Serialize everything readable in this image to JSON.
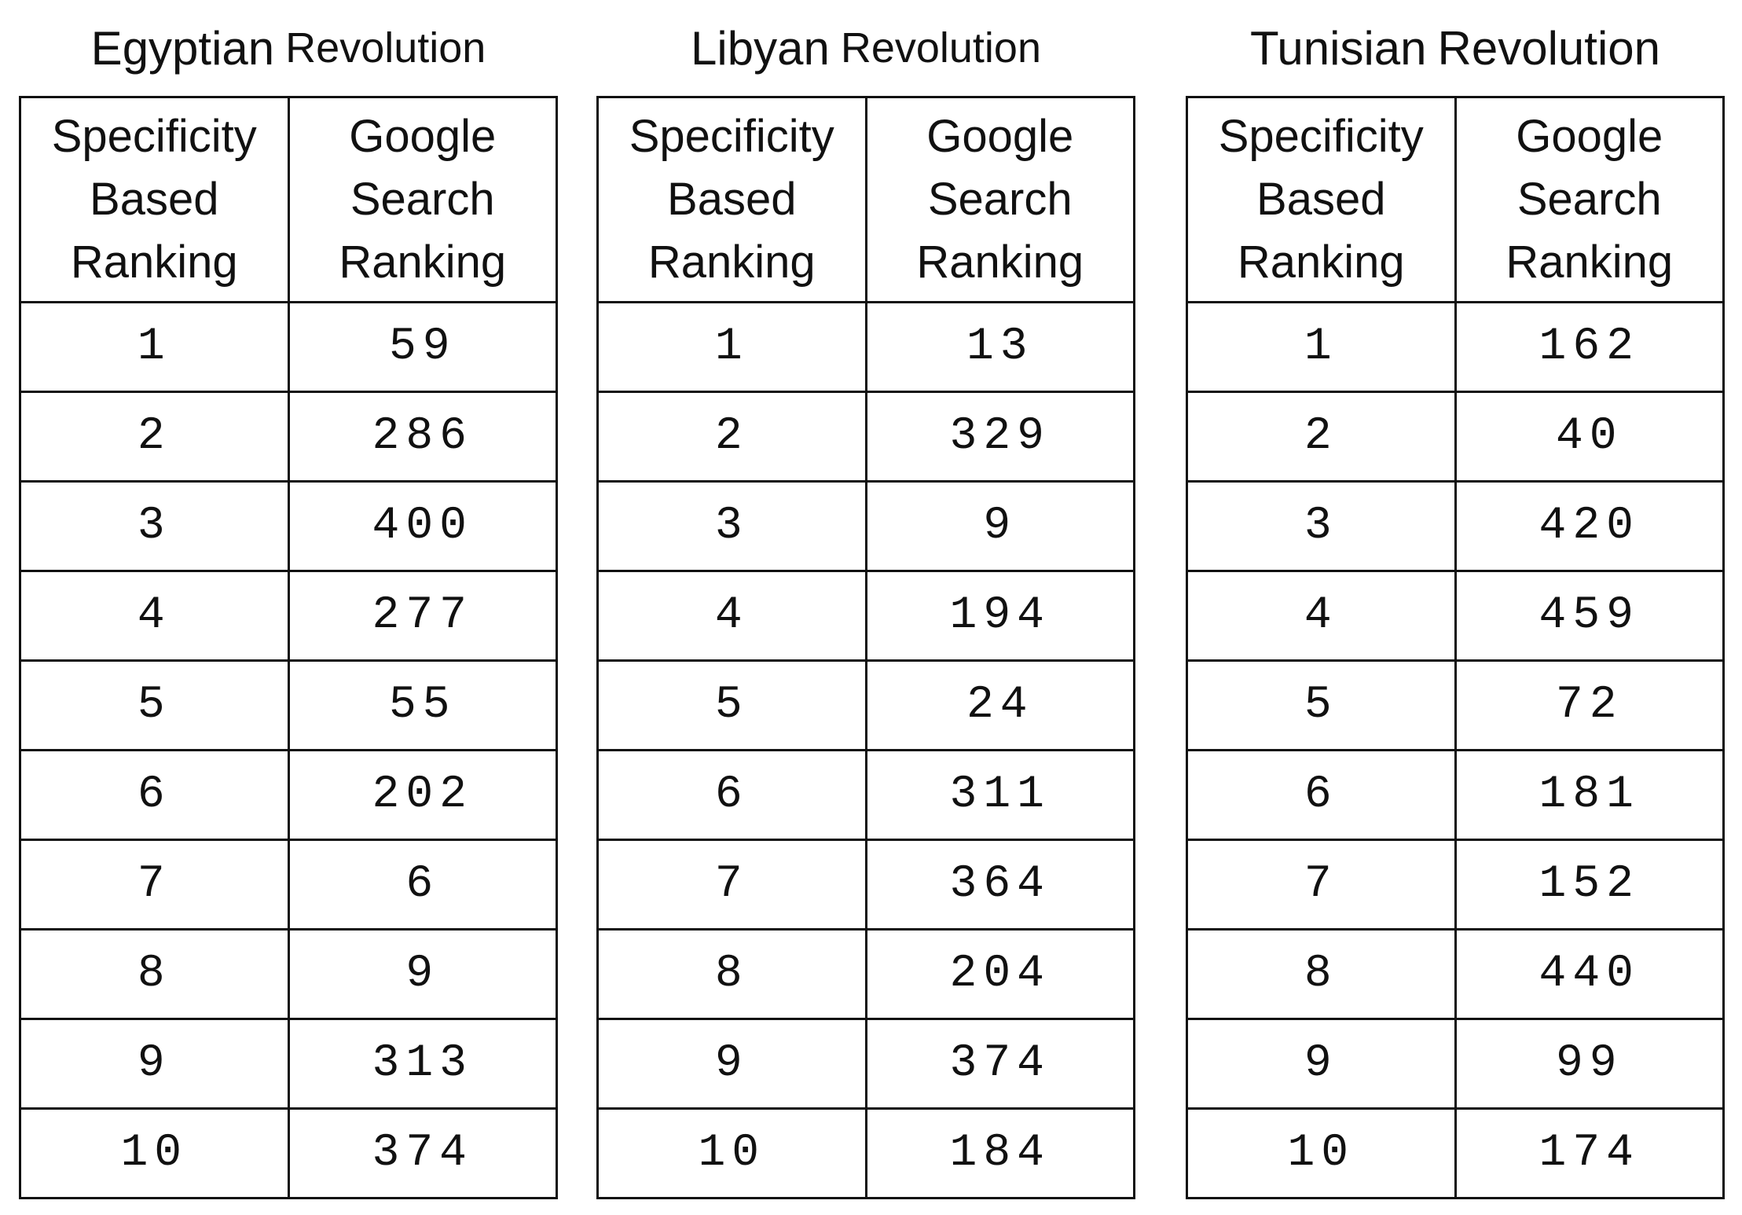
{
  "tables": [
    {
      "title_word1": "Egyptian",
      "title_word2": "Revolution",
      "header_col1": [
        "Specificity",
        "Based",
        "Ranking"
      ],
      "header_col2": [
        "Google",
        "Search",
        "Ranking"
      ],
      "rows": [
        [
          "1",
          "59"
        ],
        [
          "2",
          "286"
        ],
        [
          "3",
          "400"
        ],
        [
          "4",
          "277"
        ],
        [
          "5",
          "55"
        ],
        [
          "6",
          "202"
        ],
        [
          "7",
          "6"
        ],
        [
          "8",
          "9"
        ],
        [
          "9",
          "313"
        ],
        [
          "10",
          "374"
        ]
      ]
    },
    {
      "title_word1": "Libyan",
      "title_word2": "Revolution",
      "header_col1": [
        "Specificity",
        "Based",
        "Ranking"
      ],
      "header_col2": [
        "Google",
        "Search",
        "Ranking"
      ],
      "rows": [
        [
          "1",
          "13"
        ],
        [
          "2",
          "329"
        ],
        [
          "3",
          "9"
        ],
        [
          "4",
          "194"
        ],
        [
          "5",
          "24"
        ],
        [
          "6",
          "311"
        ],
        [
          "7",
          "364"
        ],
        [
          "8",
          "204"
        ],
        [
          "9",
          "374"
        ],
        [
          "10",
          "184"
        ]
      ]
    },
    {
      "title_word1": "Tunisian",
      "title_word2": "Revolution",
      "header_col1": [
        "Specificity",
        "Based",
        "Ranking"
      ],
      "header_col2": [
        "Google",
        "Search",
        "Ranking"
      ],
      "rows": [
        [
          "1",
          "162"
        ],
        [
          "2",
          "40"
        ],
        [
          "3",
          "420"
        ],
        [
          "4",
          "459"
        ],
        [
          "5",
          "72"
        ],
        [
          "6",
          "181"
        ],
        [
          "7",
          "152"
        ],
        [
          "8",
          "440"
        ],
        [
          "9",
          "99"
        ],
        [
          "10",
          "174"
        ]
      ]
    }
  ]
}
